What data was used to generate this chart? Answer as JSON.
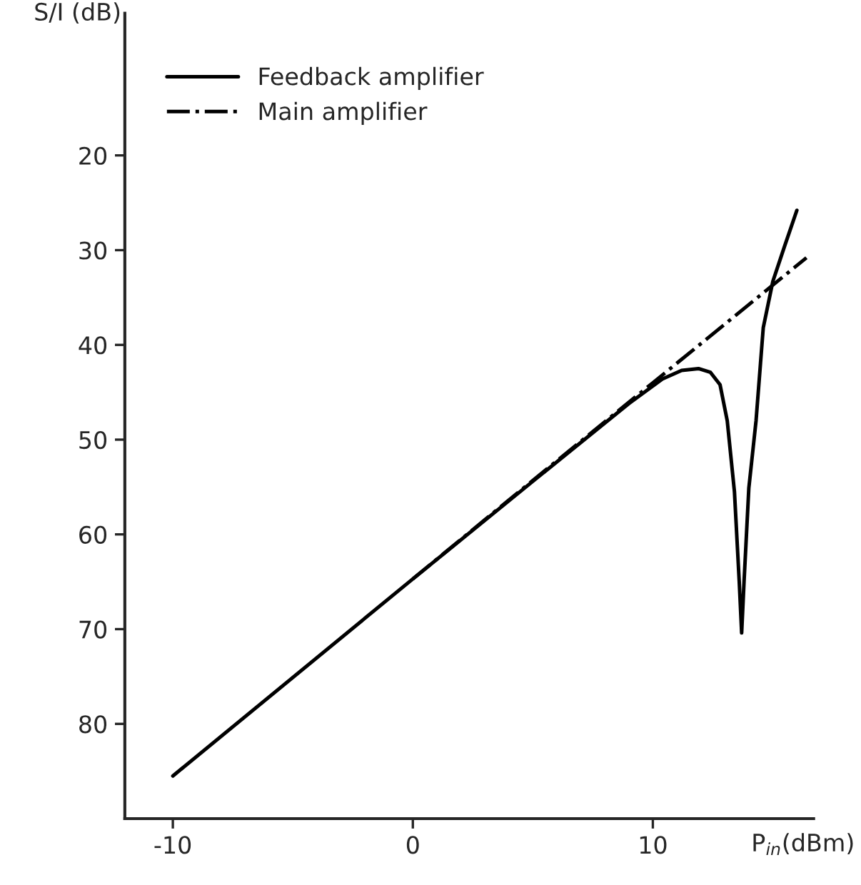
{
  "chart_data": {
    "type": "line",
    "xlabel": "P$_{in}$(dBm)",
    "ylabel": "S/I (dB)",
    "xlim": [
      -12,
      16.7
    ],
    "ylim": [
      90,
      5
    ],
    "xticks": [
      -10,
      0,
      10
    ],
    "yticks": [
      20,
      30,
      40,
      50,
      60,
      70,
      80
    ],
    "grid": false,
    "legend": "top left",
    "marker": "none",
    "series": [
      {
        "name": "Feedback amplifier",
        "color": "#000000",
        "line_style": "solid",
        "x": [
          -10,
          0,
          5,
          9,
          10.4,
          11.2,
          11.9,
          12.4,
          12.8,
          13.1,
          13.4,
          13.6,
          13.7,
          13.8,
          14.0,
          14.3,
          14.6,
          15.0,
          15.5,
          16.0
        ],
        "values": [
          85.5,
          64.7,
          54.4,
          46.2,
          43.6,
          42.7,
          42.5,
          42.9,
          44.2,
          48,
          55.5,
          65,
          70.4,
          65,
          55.1,
          48,
          38.2,
          33.3,
          29.5,
          25.8
        ]
      },
      {
        "name": "Main amplifier",
        "color": "#000000",
        "line_style": "dashdot",
        "x": [
          0,
          5,
          10,
          16.4
        ],
        "values": [
          64.7,
          54.3,
          44,
          30.8
        ]
      }
    ]
  }
}
